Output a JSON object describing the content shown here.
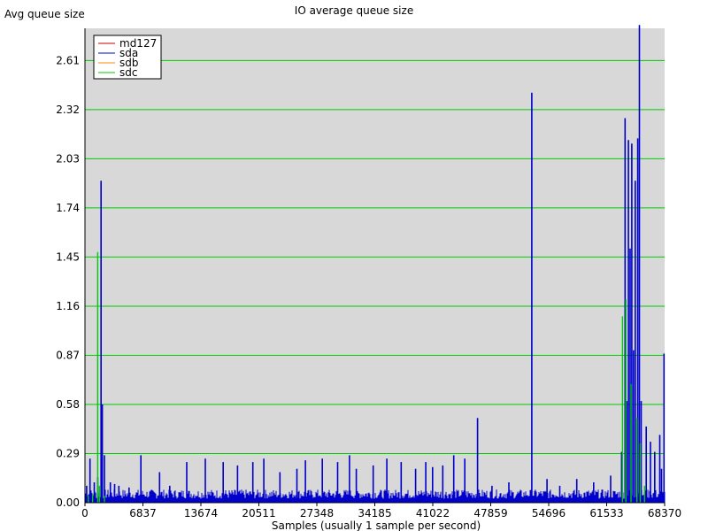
{
  "chart_data": {
    "type": "line",
    "title": "IO average queue size",
    "ylabel": "Avg queue size",
    "xlabel": "Samples (usually 1 sample per second)",
    "xlim": [
      0,
      68370
    ],
    "ylim": [
      0,
      2.8
    ],
    "y_ticks": [
      "0.00",
      "0.29",
      "0.58",
      "0.87",
      "1.16",
      "1.45",
      "1.74",
      "2.03",
      "2.32",
      "2.61"
    ],
    "x_ticks": [
      "0",
      "6837",
      "13674",
      "20511",
      "27348",
      "34185",
      "41022",
      "47859",
      "54696",
      "61533",
      "68370"
    ],
    "grid": true,
    "legend_position": "top-left",
    "background_color": "#d8d8d8",
    "grid_color": "#00cc00",
    "series": [
      {
        "name": "md127",
        "color": "#cc0000",
        "points": []
      },
      {
        "name": "sda",
        "color": "#0000cc",
        "baseline": 0.06,
        "points": [
          [
            200,
            0.1
          ],
          [
            600,
            0.26
          ],
          [
            1100,
            0.12
          ],
          [
            1500,
            0.15
          ],
          [
            1900,
            1.9
          ],
          [
            2050,
            0.58
          ],
          [
            2300,
            0.28
          ],
          [
            3000,
            0.12
          ],
          [
            3500,
            0.11
          ],
          [
            4000,
            0.1
          ],
          [
            5200,
            0.09
          ],
          [
            6600,
            0.28
          ],
          [
            8800,
            0.18
          ],
          [
            10000,
            0.1
          ],
          [
            12000,
            0.24
          ],
          [
            14200,
            0.26
          ],
          [
            16300,
            0.24
          ],
          [
            18000,
            0.22
          ],
          [
            19800,
            0.24
          ],
          [
            21100,
            0.26
          ],
          [
            23000,
            0.18
          ],
          [
            25000,
            0.2
          ],
          [
            26000,
            0.25
          ],
          [
            28000,
            0.26
          ],
          [
            29800,
            0.24
          ],
          [
            31200,
            0.28
          ],
          [
            32000,
            0.2
          ],
          [
            34000,
            0.22
          ],
          [
            35600,
            0.26
          ],
          [
            37300,
            0.24
          ],
          [
            39000,
            0.2
          ],
          [
            40200,
            0.24
          ],
          [
            41000,
            0.21
          ],
          [
            42200,
            0.22
          ],
          [
            43500,
            0.28
          ],
          [
            44800,
            0.26
          ],
          [
            46300,
            0.5
          ],
          [
            48000,
            0.1
          ],
          [
            50000,
            0.12
          ],
          [
            52700,
            2.42
          ],
          [
            54500,
            0.14
          ],
          [
            56000,
            0.1
          ],
          [
            58000,
            0.14
          ],
          [
            60000,
            0.12
          ],
          [
            62000,
            0.16
          ],
          [
            63300,
            0.3
          ],
          [
            63700,
            2.27
          ],
          [
            63900,
            0.6
          ],
          [
            64100,
            2.14
          ],
          [
            64300,
            1.5
          ],
          [
            64500,
            2.12
          ],
          [
            64700,
            0.9
          ],
          [
            64900,
            1.9
          ],
          [
            65200,
            2.15
          ],
          [
            65400,
            2.82
          ],
          [
            65600,
            0.6
          ],
          [
            66200,
            0.45
          ],
          [
            66700,
            0.36
          ],
          [
            67200,
            0.3
          ],
          [
            67800,
            0.4
          ],
          [
            68000,
            0.2
          ],
          [
            68300,
            0.88
          ]
        ]
      },
      {
        "name": "sdb",
        "color": "#ff8800",
        "points": []
      },
      {
        "name": "sdc",
        "color": "#00cc00",
        "baseline": 0.0,
        "points": [
          [
            400,
            0.04
          ],
          [
            900,
            0.05
          ],
          [
            1500,
            1.48
          ],
          [
            1700,
            0.1
          ],
          [
            2300,
            0.04
          ],
          [
            63400,
            1.1
          ],
          [
            63800,
            1.2
          ],
          [
            64400,
            0.7
          ],
          [
            65100,
            0.5
          ],
          [
            65500,
            0.35
          ],
          [
            66000,
            0.1
          ]
        ]
      }
    ]
  }
}
